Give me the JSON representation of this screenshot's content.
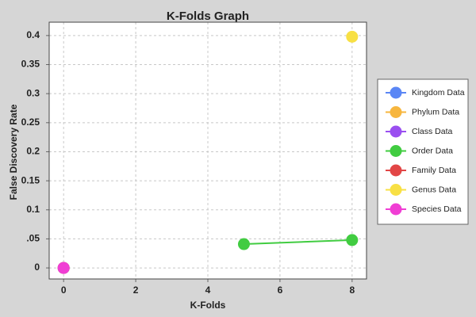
{
  "chart_data": {
    "type": "line",
    "title": "K-Folds Graph",
    "x_label": "K-Folds",
    "y_label": "False Discovery Rate",
    "xlim": [
      -0.4,
      8.4
    ],
    "xticks": [
      0,
      2,
      4,
      6,
      8
    ],
    "ylim": [
      -0.019,
      0.423
    ],
    "yticks": [
      0,
      {
        "value": 0.05,
        "label": ".05"
      },
      0.1,
      0.15,
      0.2,
      0.25,
      0.3,
      0.35,
      0.4
    ],
    "grid": true,
    "legend": "right",
    "series": [
      {
        "name": "Kingdom Data",
        "color": "#5a86f5",
        "x": [
          0
        ],
        "values": [
          0
        ]
      },
      {
        "name": "Phylum Data",
        "color": "#f7b63e",
        "x": [
          0
        ],
        "values": [
          0
        ]
      },
      {
        "name": "Class Data",
        "color": "#9a4ff0",
        "x": [
          0
        ],
        "values": [
          0
        ]
      },
      {
        "name": "Order Data",
        "color": "#41cc41",
        "x": [
          5,
          8
        ],
        "values": [
          0.041,
          0.048
        ]
      },
      {
        "name": "Family Data",
        "color": "#e24646",
        "x": [
          0
        ],
        "values": [
          0
        ]
      },
      {
        "name": "Genus Data",
        "color": "#f8e044",
        "x": [
          8
        ],
        "values": [
          0.398
        ]
      },
      {
        "name": "Species Data",
        "color": "#f03ed4",
        "x": [
          0
        ],
        "values": [
          0
        ]
      }
    ]
  }
}
